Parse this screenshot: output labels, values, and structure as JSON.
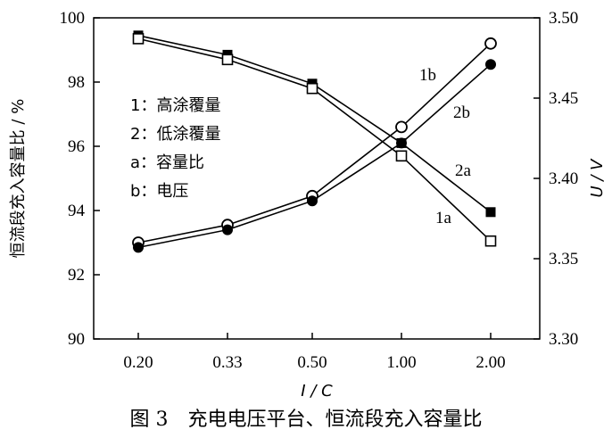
{
  "caption": "图 3　充电电压平台、恒流段充入容量比",
  "chart_data": {
    "type": "line",
    "categories": [
      "0.20",
      "0.33",
      "0.50",
      "1.00",
      "2.00"
    ],
    "xlabel": "I / C",
    "ylabel_left": "恒流段充入容量比 / %",
    "ylabel_right": "U / V",
    "ylim_left": [
      90,
      100
    ],
    "ylim_right": [
      3.3,
      3.5
    ],
    "yticks_left": [
      "90",
      "92",
      "94",
      "96",
      "98",
      "100"
    ],
    "yticks_right": [
      "3.30",
      "3.35",
      "3.40",
      "3.45",
      "3.50"
    ],
    "grid": false,
    "legend": [
      {
        "key": "1",
        "label": "1：高涂覆量"
      },
      {
        "key": "2",
        "label": "2：低涂覆量"
      },
      {
        "key": "a",
        "label": "a：容量比"
      },
      {
        "key": "b",
        "label": "b：电压"
      }
    ],
    "series": [
      {
        "name": "1a",
        "axis": "left",
        "marker": "filled-square",
        "values": [
          99.45,
          98.85,
          97.95,
          96.1,
          93.95
        ]
      },
      {
        "name": "2a",
        "axis": "left",
        "marker": "open-square",
        "values": [
          99.35,
          98.7,
          97.8,
          95.7,
          93.05
        ]
      },
      {
        "name": "1b",
        "axis": "right",
        "marker": "open-circle",
        "values": [
          3.36,
          3.371,
          3.389,
          3.432,
          3.484
        ]
      },
      {
        "name": "2b",
        "axis": "right",
        "marker": "filled-circle",
        "values": [
          3.357,
          3.368,
          3.386,
          3.422,
          3.471
        ]
      }
    ]
  }
}
